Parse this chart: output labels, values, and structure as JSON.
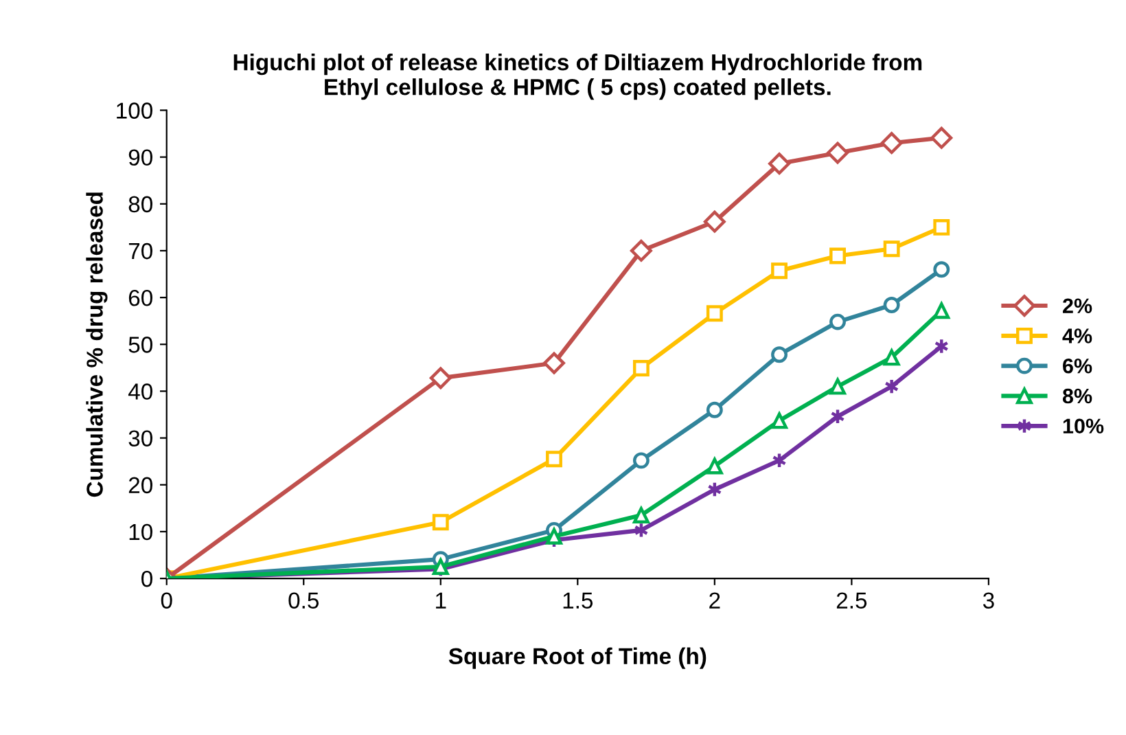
{
  "chart_data": {
    "type": "line",
    "title": "Higuchi plot of release kinetics of Diltiazem Hydrochloride from\nEthyl cellulose & HPMC ( 5 cps) coated pellets.",
    "xlabel": "Square Root of Time (h)",
    "ylabel": "Cumulative % drug released",
    "x": [
      0,
      1,
      1.414,
      1.732,
      2,
      2.236,
      2.449,
      2.646,
      2.828
    ],
    "series": [
      {
        "name": "2%",
        "color": "#c0504d",
        "marker": "diamond",
        "values": [
          0,
          42.8,
          46,
          70,
          76.2,
          88.6,
          90.9,
          93,
          94.1
        ]
      },
      {
        "name": "4%",
        "color": "#ffc000",
        "marker": "square",
        "values": [
          0,
          12,
          25.5,
          44.9,
          56.6,
          65.7,
          68.9,
          70.4,
          75
        ]
      },
      {
        "name": "6%",
        "color": "#31849b",
        "marker": "circle",
        "values": [
          0,
          4.1,
          10.3,
          25.2,
          36,
          47.8,
          54.8,
          58.4,
          66
        ]
      },
      {
        "name": "8%",
        "color": "#00b050",
        "marker": "triangle",
        "values": [
          0,
          2.5,
          9,
          13.5,
          24,
          33.7,
          41,
          47.2,
          57.2
        ]
      },
      {
        "name": "10%",
        "color": "#7030a0",
        "marker": "cross",
        "values": [
          0,
          2,
          8.2,
          10.3,
          19,
          25.2,
          34.6,
          41,
          49.6
        ]
      }
    ],
    "xlim": [
      0,
      3
    ],
    "xticks": [
      0,
      0.5,
      1,
      1.5,
      2,
      2.5,
      3
    ],
    "ylim": [
      0,
      100
    ],
    "yticks": [
      0,
      10,
      20,
      30,
      40,
      50,
      60,
      70,
      80,
      90,
      100
    ],
    "grid": false,
    "legend": "right",
    "line_style": "solid"
  }
}
